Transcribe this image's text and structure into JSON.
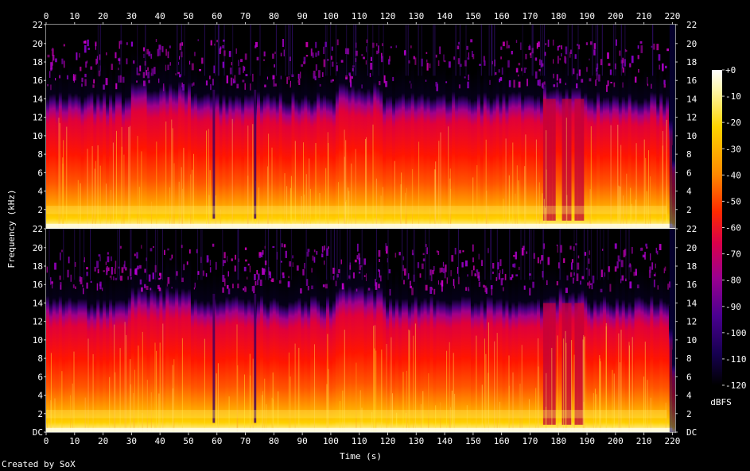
{
  "chart_data": {
    "type": "heatmap",
    "title": "",
    "xlabel": "Time (s)",
    "ylabel": "Frequency (kHz)",
    "x_ticks": [
      0,
      10,
      20,
      30,
      40,
      50,
      60,
      70,
      80,
      90,
      100,
      110,
      120,
      130,
      140,
      150,
      160,
      170,
      180,
      190,
      200,
      210,
      220
    ],
    "xlim": [
      0,
      221
    ],
    "ylim_khz": [
      0,
      22.05
    ],
    "channels": [
      {
        "y_ticks": [
          "2",
          "4",
          "6",
          "8",
          "10",
          "12",
          "14",
          "16",
          "18",
          "20",
          "22"
        ]
      },
      {
        "y_ticks": [
          "DC",
          "2",
          "4",
          "6",
          "8",
          "10",
          "12",
          "14",
          "16",
          "18",
          "20",
          "22"
        ]
      }
    ],
    "colorbar": {
      "label": "dBFS",
      "ticks": [
        "+0",
        "-10",
        "-20",
        "-30",
        "-40",
        "-50",
        "-60",
        "-70",
        "-80",
        "-90",
        "-100",
        "-110",
        "-120"
      ],
      "range": [
        -120,
        0
      ]
    },
    "features": {
      "typical_cutoff_khz": 16.5,
      "max_content_khz": 19.5,
      "fadeout_start_s": 218
    }
  },
  "footer": {
    "credit": "Created by SoX"
  }
}
